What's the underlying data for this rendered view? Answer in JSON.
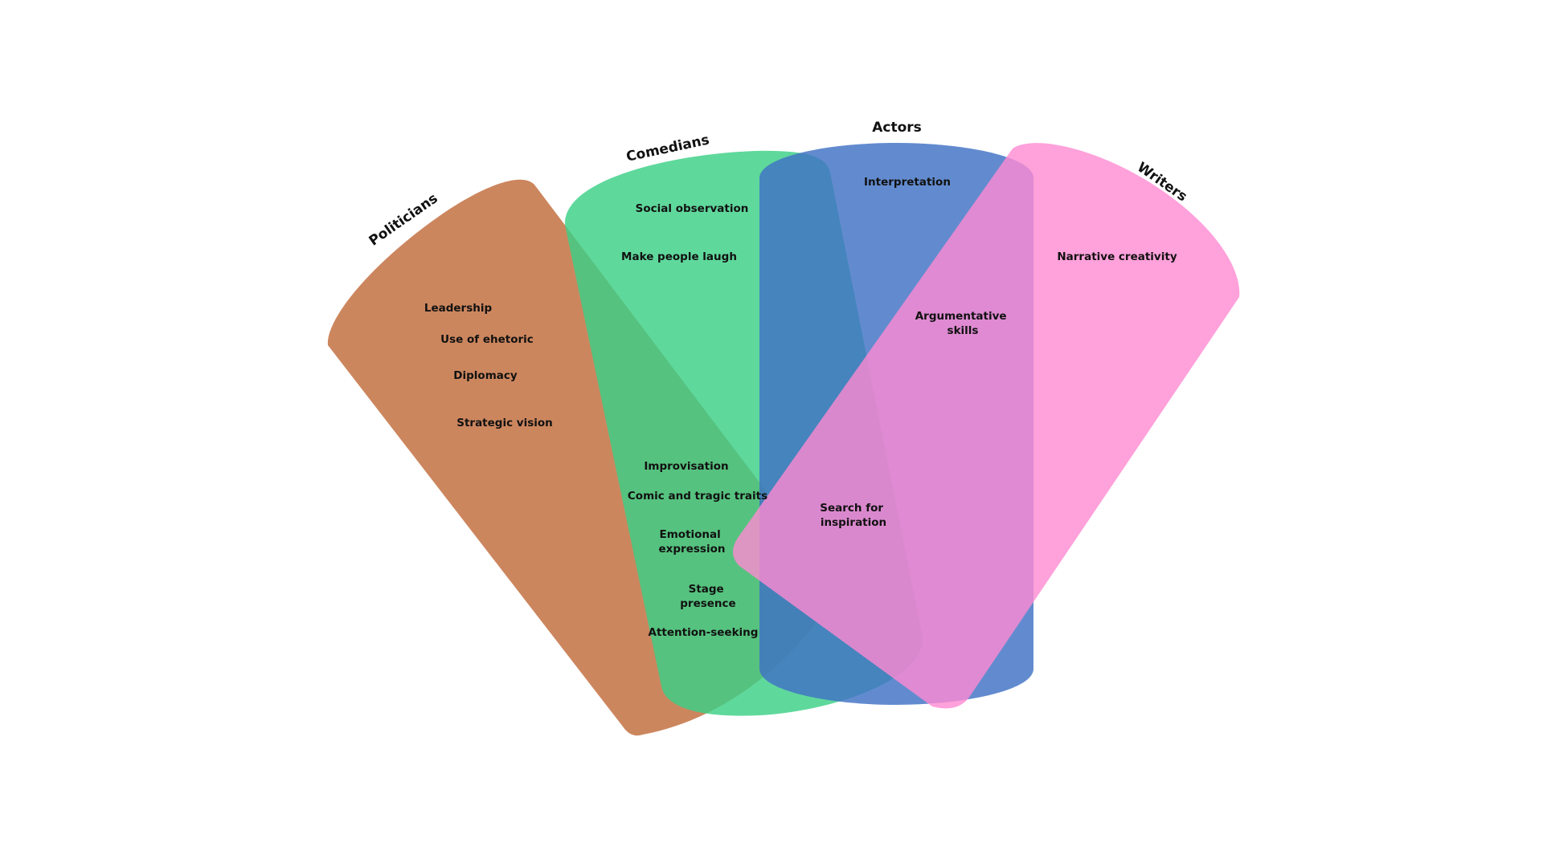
{
  "colors": {
    "politicians": "#c97f55",
    "comedians": "#3ccf86",
    "actors": "#3f72c4",
    "writers": "#ff8ad2",
    "text": "#111111"
  },
  "sets": {
    "politicians": {
      "label": "Politicians"
    },
    "comedians": {
      "label": "Comedians"
    },
    "actors": {
      "label": "Actors"
    },
    "writers": {
      "label": "Writers"
    }
  },
  "items": {
    "leadership": "Leadership",
    "use_of_rhetoric": "Use of ehetoric",
    "diplomacy": "Diplomacy",
    "strategic_vision": "Strategic vision",
    "social_observation": "Social observation",
    "make_people_laugh": "Make people laugh",
    "interpretation": "Interpretation",
    "narrative_creativity": "Narrative creativity",
    "argumentative_skills": [
      "Argumentative",
      "skills"
    ],
    "improvisation": "Improvisation",
    "comic_and_tragic_traits": "Comic and tragic traits",
    "emotional_expression": [
      "Emotional",
      "expression"
    ],
    "search_for_inspiration": [
      "Search for",
      "inspiration"
    ],
    "stage_presence": [
      "Stage",
      "presence"
    ],
    "attention_seeking": "Attention-seeking"
  }
}
